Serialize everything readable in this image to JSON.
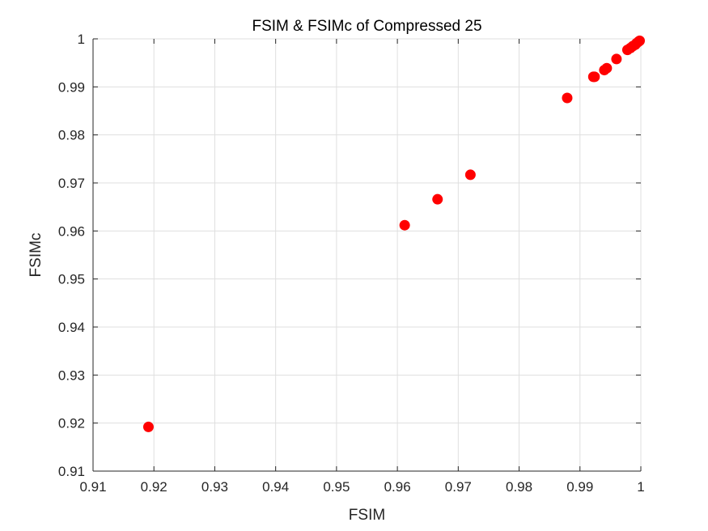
{
  "chart_data": {
    "type": "scatter",
    "title": "FSIM & FSIMc of Compressed 25",
    "xlabel": "FSIM",
    "ylabel": "FSIMc",
    "xlim": [
      0.91,
      1
    ],
    "ylim": [
      0.91,
      1
    ],
    "xticks": [
      0.91,
      0.92,
      0.93,
      0.94,
      0.95,
      0.96,
      0.97,
      0.98,
      0.99,
      1
    ],
    "yticks": [
      0.91,
      0.92,
      0.93,
      0.94,
      0.95,
      0.96,
      0.97,
      0.98,
      0.99,
      1
    ],
    "xtick_labels": [
      "0.91",
      "0.92",
      "0.93",
      "0.94",
      "0.95",
      "0.96",
      "0.97",
      "0.98",
      "0.99",
      "1"
    ],
    "ytick_labels": [
      "0.91",
      "0.92",
      "0.93",
      "0.94",
      "0.95",
      "0.96",
      "0.97",
      "0.98",
      "0.99",
      "1"
    ],
    "grid": true,
    "marker_color": "#ff0000",
    "series": [
      {
        "points": [
          {
            "x": 0.9191,
            "y": 0.9192
          },
          {
            "x": 0.9612,
            "y": 0.9612
          },
          {
            "x": 0.9666,
            "y": 0.9666
          },
          {
            "x": 0.972,
            "y": 0.9717
          },
          {
            "x": 0.9879,
            "y": 0.9877
          },
          {
            "x": 0.9922,
            "y": 0.9921
          },
          {
            "x": 0.9924,
            "y": 0.9921
          },
          {
            "x": 0.994,
            "y": 0.9935
          },
          {
            "x": 0.9944,
            "y": 0.9939
          },
          {
            "x": 0.996,
            "y": 0.9958
          },
          {
            "x": 0.9978,
            "y": 0.9977
          },
          {
            "x": 0.9983,
            "y": 0.9981
          },
          {
            "x": 0.9987,
            "y": 0.9985
          },
          {
            "x": 0.9991,
            "y": 0.9988
          },
          {
            "x": 0.9993,
            "y": 0.9991
          },
          {
            "x": 0.9996,
            "y": 0.9994
          },
          {
            "x": 0.9998,
            "y": 0.9996
          }
        ]
      }
    ]
  }
}
